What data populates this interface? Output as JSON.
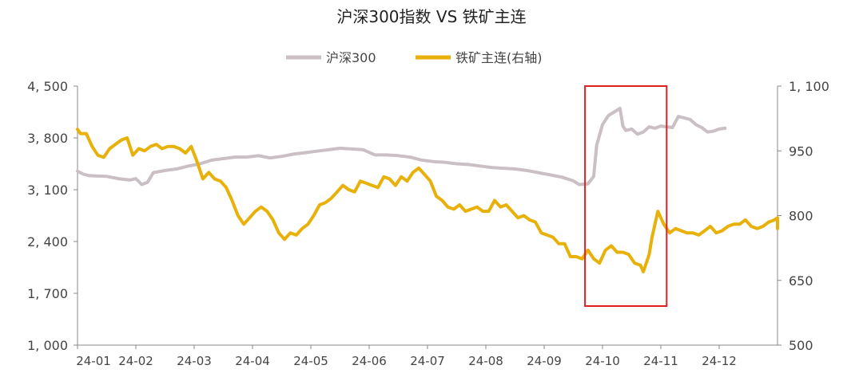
{
  "chart_data": {
    "type": "line",
    "title": "沪深300指数 VS 铁矿主连",
    "legend_position": "top-center",
    "x_ticks": [
      "24-01",
      "24-02",
      "24-03",
      "24-04",
      "24-05",
      "24-06",
      "24-07",
      "24-08",
      "24-09",
      "24-10",
      "24-11",
      "24-12"
    ],
    "y_left": {
      "ticks": [
        "4, 500",
        "3, 800",
        "3, 100",
        "2, 400",
        "1, 700",
        "1, 000"
      ],
      "range": [
        1000,
        4500
      ]
    },
    "y_right": {
      "ticks": [
        "1, 100",
        "950",
        "800",
        "650",
        "500"
      ],
      "range": [
        500,
        1100
      ]
    },
    "highlight_box": {
      "x_from": 8.7,
      "x_to": 10.1,
      "color": "#e02020"
    },
    "series": [
      {
        "name": "沪深300",
        "axis": "left",
        "color": "#c9bfc5",
        "points": [
          [
            0,
            3350
          ],
          [
            0.1,
            3310
          ],
          [
            0.2,
            3290
          ],
          [
            0.5,
            3280
          ],
          [
            0.7,
            3250
          ],
          [
            0.9,
            3230
          ],
          [
            1.0,
            3250
          ],
          [
            1.1,
            3170
          ],
          [
            1.2,
            3200
          ],
          [
            1.3,
            3330
          ],
          [
            1.5,
            3360
          ],
          [
            1.7,
            3380
          ],
          [
            1.9,
            3420
          ],
          [
            2.1,
            3450
          ],
          [
            2.3,
            3500
          ],
          [
            2.5,
            3520
          ],
          [
            2.7,
            3540
          ],
          [
            2.9,
            3540
          ],
          [
            3.1,
            3560
          ],
          [
            3.3,
            3530
          ],
          [
            3.5,
            3550
          ],
          [
            3.7,
            3580
          ],
          [
            3.9,
            3600
          ],
          [
            4.1,
            3620
          ],
          [
            4.3,
            3640
          ],
          [
            4.5,
            3660
          ],
          [
            4.7,
            3650
          ],
          [
            4.9,
            3640
          ],
          [
            5.1,
            3570
          ],
          [
            5.3,
            3570
          ],
          [
            5.5,
            3560
          ],
          [
            5.7,
            3540
          ],
          [
            5.9,
            3500
          ],
          [
            6.1,
            3480
          ],
          [
            6.3,
            3470
          ],
          [
            6.5,
            3450
          ],
          [
            6.7,
            3440
          ],
          [
            6.9,
            3420
          ],
          [
            7.1,
            3400
          ],
          [
            7.3,
            3390
          ],
          [
            7.5,
            3380
          ],
          [
            7.7,
            3360
          ],
          [
            7.9,
            3330
          ],
          [
            8.1,
            3300
          ],
          [
            8.3,
            3270
          ],
          [
            8.5,
            3220
          ],
          [
            8.6,
            3170
          ],
          [
            8.75,
            3180
          ],
          [
            8.85,
            3280
          ],
          [
            8.9,
            3700
          ],
          [
            9.0,
            3980
          ],
          [
            9.1,
            4100
          ],
          [
            9.2,
            4150
          ],
          [
            9.3,
            4200
          ],
          [
            9.35,
            3960
          ],
          [
            9.4,
            3900
          ],
          [
            9.5,
            3920
          ],
          [
            9.6,
            3850
          ],
          [
            9.7,
            3880
          ],
          [
            9.8,
            3950
          ],
          [
            9.9,
            3930
          ],
          [
            10.0,
            3960
          ],
          [
            10.1,
            3950
          ],
          [
            10.2,
            3940
          ],
          [
            10.3,
            4090
          ],
          [
            10.4,
            4070
          ],
          [
            10.5,
            4050
          ],
          [
            10.6,
            3980
          ],
          [
            10.7,
            3940
          ],
          [
            10.8,
            3880
          ],
          [
            10.9,
            3890
          ],
          [
            11.0,
            3920
          ],
          [
            11.1,
            3930
          ]
        ]
      },
      {
        "name": "铁矿主连(右轴)",
        "axis": "right",
        "color": "#e8b10a",
        "points": [
          [
            0,
            1000
          ],
          [
            0.05,
            990
          ],
          [
            0.15,
            990
          ],
          [
            0.25,
            960
          ],
          [
            0.35,
            940
          ],
          [
            0.45,
            935
          ],
          [
            0.55,
            955
          ],
          [
            0.65,
            965
          ],
          [
            0.75,
            975
          ],
          [
            0.85,
            980
          ],
          [
            0.95,
            940
          ],
          [
            1.05,
            955
          ],
          [
            1.15,
            950
          ],
          [
            1.25,
            960
          ],
          [
            1.35,
            965
          ],
          [
            1.45,
            955
          ],
          [
            1.55,
            960
          ],
          [
            1.65,
            960
          ],
          [
            1.75,
            955
          ],
          [
            1.85,
            945
          ],
          [
            1.95,
            960
          ],
          [
            2.05,
            925
          ],
          [
            2.15,
            885
          ],
          [
            2.25,
            900
          ],
          [
            2.35,
            885
          ],
          [
            2.45,
            880
          ],
          [
            2.55,
            865
          ],
          [
            2.65,
            835
          ],
          [
            2.75,
            800
          ],
          [
            2.85,
            780
          ],
          [
            2.95,
            795
          ],
          [
            3.05,
            810
          ],
          [
            3.15,
            820
          ],
          [
            3.25,
            810
          ],
          [
            3.35,
            790
          ],
          [
            3.45,
            760
          ],
          [
            3.55,
            745
          ],
          [
            3.65,
            760
          ],
          [
            3.75,
            755
          ],
          [
            3.85,
            770
          ],
          [
            3.95,
            780
          ],
          [
            4.05,
            800
          ],
          [
            4.15,
            825
          ],
          [
            4.25,
            830
          ],
          [
            4.35,
            840
          ],
          [
            4.45,
            855
          ],
          [
            4.55,
            870
          ],
          [
            4.65,
            860
          ],
          [
            4.75,
            855
          ],
          [
            4.85,
            880
          ],
          [
            4.95,
            875
          ],
          [
            5.05,
            870
          ],
          [
            5.15,
            865
          ],
          [
            5.25,
            890
          ],
          [
            5.35,
            885
          ],
          [
            5.45,
            870
          ],
          [
            5.55,
            890
          ],
          [
            5.65,
            880
          ],
          [
            5.75,
            900
          ],
          [
            5.85,
            910
          ],
          [
            5.95,
            895
          ],
          [
            6.05,
            880
          ],
          [
            6.15,
            845
          ],
          [
            6.25,
            835
          ],
          [
            6.35,
            820
          ],
          [
            6.45,
            815
          ],
          [
            6.55,
            825
          ],
          [
            6.65,
            810
          ],
          [
            6.75,
            815
          ],
          [
            6.85,
            820
          ],
          [
            6.95,
            810
          ],
          [
            7.05,
            810
          ],
          [
            7.15,
            835
          ],
          [
            7.25,
            820
          ],
          [
            7.35,
            825
          ],
          [
            7.45,
            810
          ],
          [
            7.55,
            795
          ],
          [
            7.65,
            800
          ],
          [
            7.75,
            790
          ],
          [
            7.85,
            785
          ],
          [
            7.95,
            760
          ],
          [
            8.05,
            755
          ],
          [
            8.15,
            750
          ],
          [
            8.25,
            735
          ],
          [
            8.35,
            735
          ],
          [
            8.45,
            705
          ],
          [
            8.55,
            705
          ],
          [
            8.65,
            700
          ],
          [
            8.75,
            720
          ],
          [
            8.85,
            700
          ],
          [
            8.95,
            690
          ],
          [
            9.05,
            720
          ],
          [
            9.15,
            730
          ],
          [
            9.25,
            715
          ],
          [
            9.35,
            715
          ],
          [
            9.45,
            710
          ],
          [
            9.55,
            690
          ],
          [
            9.65,
            685
          ],
          [
            9.7,
            670
          ],
          [
            9.75,
            690
          ],
          [
            9.8,
            710
          ],
          [
            9.85,
            750
          ],
          [
            9.95,
            810
          ],
          [
            10.05,
            780
          ],
          [
            10.15,
            760
          ],
          [
            10.25,
            770
          ],
          [
            10.35,
            765
          ],
          [
            10.45,
            760
          ],
          [
            10.55,
            760
          ],
          [
            10.65,
            755
          ],
          [
            10.75,
            765
          ],
          [
            10.85,
            775
          ],
          [
            10.95,
            760
          ],
          [
            11.05,
            765
          ],
          [
            11.15,
            775
          ],
          [
            11.25,
            780
          ],
          [
            11.35,
            780
          ],
          [
            11.45,
            790
          ],
          [
            11.55,
            775
          ],
          [
            11.65,
            770
          ],
          [
            11.75,
            775
          ],
          [
            11.85,
            785
          ],
          [
            11.95,
            790
          ],
          [
            12.05,
            795
          ],
          [
            12.15,
            785
          ],
          [
            12.25,
            770
          ]
        ]
      }
    ]
  }
}
